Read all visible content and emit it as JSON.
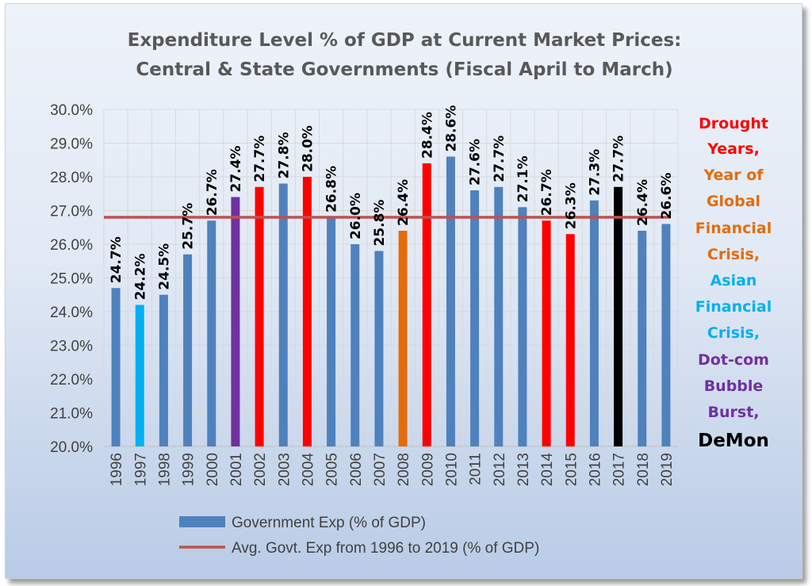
{
  "chart_data": {
    "type": "bar",
    "title": [
      "Expenditure Level % of GDP at Current Market Prices:",
      "Central & State Governments  (Fiscal April to March)"
    ],
    "categories": [
      "1996",
      "1997",
      "1998",
      "1999",
      "2000",
      "2001",
      "2002",
      "2003",
      "2004",
      "2005",
      "2006",
      "2007",
      "2008",
      "2009",
      "2010",
      "2011",
      "2012",
      "2013",
      "2014",
      "2015",
      "2016",
      "2017",
      "2018",
      "2019"
    ],
    "series": [
      {
        "name": "Government Exp (% of GDP)",
        "values": [
          24.7,
          24.2,
          24.5,
          25.7,
          26.7,
          27.4,
          27.7,
          27.8,
          28.0,
          26.8,
          26.0,
          25.8,
          26.4,
          28.4,
          28.6,
          27.6,
          27.7,
          27.1,
          26.7,
          26.3,
          27.3,
          27.7,
          26.4,
          26.6
        ],
        "value_labels": [
          "24.7%",
          "24.2%",
          "24.5%",
          "25.7%",
          "26.7%",
          "27.4%",
          "27.7%",
          "27.8%",
          "28.0%",
          "26.8%",
          "26.0%",
          "25.8%",
          "26.4%",
          "28.4%",
          "28.6%",
          "27.6%",
          "27.7%",
          "27.1%",
          "26.7%",
          "26.3%",
          "27.3%",
          "27.7%",
          "26.4%",
          "26.6%"
        ],
        "colors": [
          "#4f81bd",
          "#00b0f0",
          "#4f81bd",
          "#4f81bd",
          "#4f81bd",
          "#7030a0",
          "#ff0000",
          "#4f81bd",
          "#ff0000",
          "#4f81bd",
          "#4f81bd",
          "#4f81bd",
          "#e46c0a",
          "#ff0000",
          "#4f81bd",
          "#4f81bd",
          "#4f81bd",
          "#4f81bd",
          "#ff0000",
          "#ff0000",
          "#4f81bd",
          "#000000",
          "#4f81bd",
          "#4f81bd"
        ],
        "default_color": "#4f81bd"
      },
      {
        "name": "Avg. Govt. Exp from 1996 to 2019 (% of GDP)",
        "type": "line",
        "value": 26.8,
        "color": "#c0504d"
      }
    ],
    "ylim": [
      20.0,
      30.0
    ],
    "yticks": [
      "20.0%",
      "21.0%",
      "22.0%",
      "23.0%",
      "24.0%",
      "25.0%",
      "26.0%",
      "27.0%",
      "28.0%",
      "29.0%",
      "30.0%"
    ],
    "grid": true,
    "legend": "bottom",
    "annotation": [
      {
        "text": "Drought",
        "color": "#ff0000"
      },
      {
        "text": "Years,",
        "color": "#ff0000"
      },
      {
        "text": "Year of",
        "color": "#e46c0a"
      },
      {
        "text": "Global",
        "color": "#e46c0a"
      },
      {
        "text": "Financial",
        "color": "#e46c0a"
      },
      {
        "text": "Crisis,",
        "color": "#e46c0a"
      },
      {
        "text": "Asian",
        "color": "#00b0f0"
      },
      {
        "text": "Financial",
        "color": "#00b0f0"
      },
      {
        "text": "Crisis,",
        "color": "#00b0f0"
      },
      {
        "text": "Dot-com",
        "color": "#7030a0"
      },
      {
        "text": "Bubble",
        "color": "#7030a0"
      },
      {
        "text": "Burst,",
        "color": "#7030a0"
      },
      {
        "text": "DeMon",
        "color": "#000000"
      }
    ]
  }
}
